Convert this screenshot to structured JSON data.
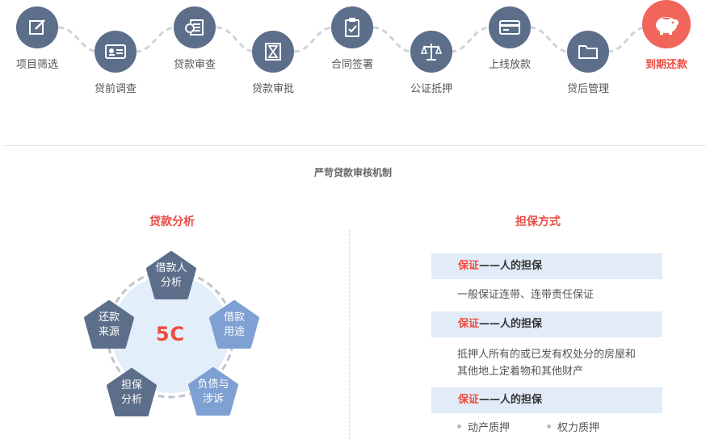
{
  "process": {
    "steps": [
      {
        "label": "项目筛选",
        "icon": "edit-icon"
      },
      {
        "label": "贷前调查",
        "icon": "id-card-icon"
      },
      {
        "label": "贷款审查",
        "icon": "coin-document-icon"
      },
      {
        "label": "贷款审批",
        "icon": "hourglass-icon"
      },
      {
        "label": "合同签署",
        "icon": "clipboard-check-icon"
      },
      {
        "label": "公证抵押",
        "icon": "scale-icon"
      },
      {
        "label": "上线放款",
        "icon": "credit-card-icon"
      },
      {
        "label": "贷后管理",
        "icon": "folder-icon"
      },
      {
        "label": "到期还款",
        "icon": "piggy-bank-icon"
      }
    ],
    "colors": {
      "step": "#5c6e8a",
      "active": "#f2655a"
    }
  },
  "mechanism_title": "严苛贷款审核机制",
  "loan_analysis": {
    "title": "贷款分析",
    "center": "5C",
    "items": [
      "借款人\n分析",
      "借款\n用途",
      "负债与\n涉诉",
      "担保\n分析",
      "还款\n来源"
    ]
  },
  "guarantee": {
    "title": "担保方式",
    "blocks": [
      {
        "key": "保证",
        "rest": "——人的担保",
        "text": "一般保证连带、连带责任保证"
      },
      {
        "key": "保证",
        "rest": "——人的担保",
        "text": "抵押人所有的或已发有权处分的房屋和其他地上定着物和其他财产"
      },
      {
        "key": "保证",
        "rest": "——人的担保",
        "bullets": [
          "动产质押",
          "权力质押"
        ]
      }
    ]
  }
}
